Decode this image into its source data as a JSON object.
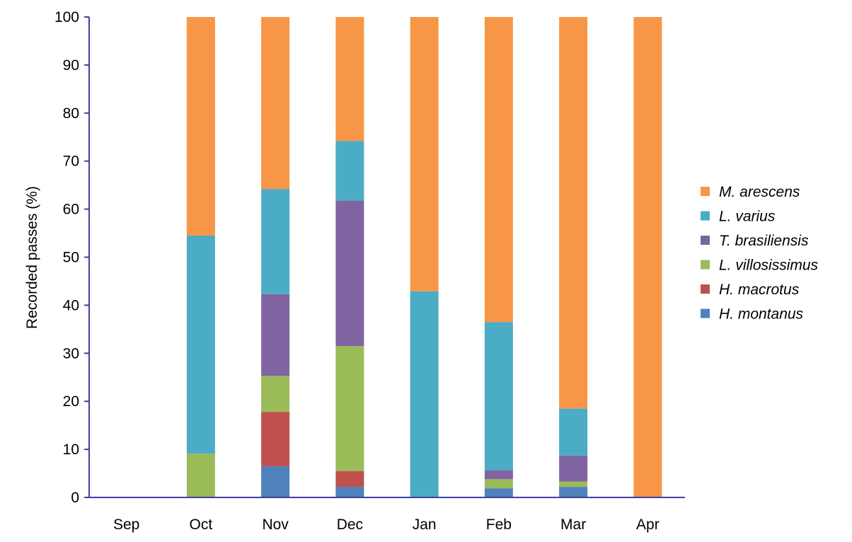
{
  "chart_data": {
    "type": "bar",
    "stacked": true,
    "title": "",
    "xlabel": "",
    "ylabel": "Recorded passes (%)",
    "ylim": [
      0,
      100
    ],
    "yticks": [
      0,
      10,
      20,
      30,
      40,
      50,
      60,
      70,
      80,
      90,
      100
    ],
    "grid": false,
    "legend_position": "right",
    "categories": [
      "Sep",
      "Oct",
      "Nov",
      "Dec",
      "Jan",
      "Feb",
      "Mar",
      "Apr"
    ],
    "series": [
      {
        "name": "H. montanus",
        "color": "#4F81BD",
        "values": [
          0,
          0,
          6.5,
          2.2,
          0,
          1.9,
          2.2,
          0
        ]
      },
      {
        "name": "H. macrotus",
        "color": "#C0504D",
        "values": [
          0,
          0,
          11.3,
          3.3,
          0,
          0,
          0,
          0
        ]
      },
      {
        "name": "L. villosissimus",
        "color": "#9BBB59",
        "values": [
          0,
          9.1,
          7.5,
          26.0,
          0,
          1.9,
          1.1,
          0
        ]
      },
      {
        "name": "T. brasiliensis",
        "color": "#8064A2",
        "values": [
          0,
          0,
          17.0,
          30.3,
          0,
          1.9,
          5.4,
          0
        ]
      },
      {
        "name": "L. varius",
        "color": "#4BACC6",
        "values": [
          0,
          45.4,
          21.9,
          12.4,
          42.9,
          30.8,
          9.8,
          0
        ]
      },
      {
        "name": "M. arescens",
        "color": "#F79646",
        "values": [
          0,
          45.5,
          35.8,
          25.8,
          57.1,
          63.5,
          81.5,
          100
        ]
      }
    ],
    "legend_order": [
      "M. arescens",
      "L. varius",
      "T. brasiliensis",
      "L. villosissimus",
      "H. macrotus",
      "H. montanus"
    ],
    "axis_color": "#4040A0"
  }
}
